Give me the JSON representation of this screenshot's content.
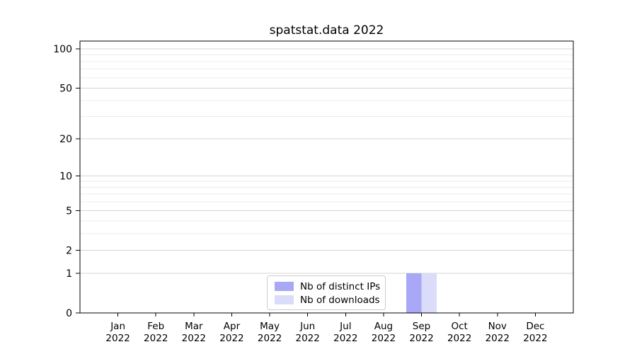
{
  "chart_data": {
    "type": "bar",
    "title": "spatstat.data 2022",
    "categories": [
      "Jan 2022",
      "Feb 2022",
      "Mar 2022",
      "Apr 2022",
      "May 2022",
      "Jun 2022",
      "Jul 2022",
      "Aug 2022",
      "Sep 2022",
      "Oct 2022",
      "Nov 2022",
      "Dec 2022"
    ],
    "series": [
      {
        "name": "Nb of distinct IPs",
        "color": "#a8a8f6",
        "values": [
          0,
          0,
          0,
          0,
          0,
          0,
          0,
          0,
          1,
          0,
          0,
          0
        ]
      },
      {
        "name": "Nb of downloads",
        "color": "#dbdbfa",
        "values": [
          0,
          0,
          0,
          0,
          0,
          0,
          0,
          0,
          1,
          0,
          0,
          0
        ]
      }
    ],
    "xlabel": "",
    "ylabel": "",
    "yscale": "log1p",
    "ylim": [
      0,
      115
    ],
    "y_major_ticks": [
      0,
      1,
      2,
      5,
      10,
      20,
      50,
      100
    ],
    "y_minor_ticks": [
      3,
      4,
      6,
      7,
      8,
      9,
      30,
      40,
      60,
      70,
      80,
      90
    ],
    "grid": "horizontal",
    "legend_position": "inside lower-center",
    "colors": {
      "background": "#ffffff",
      "axis": "#000000",
      "tick_label": "#000000",
      "major_grid": "#d4d4d4",
      "minor_grid": "#ececec"
    }
  }
}
